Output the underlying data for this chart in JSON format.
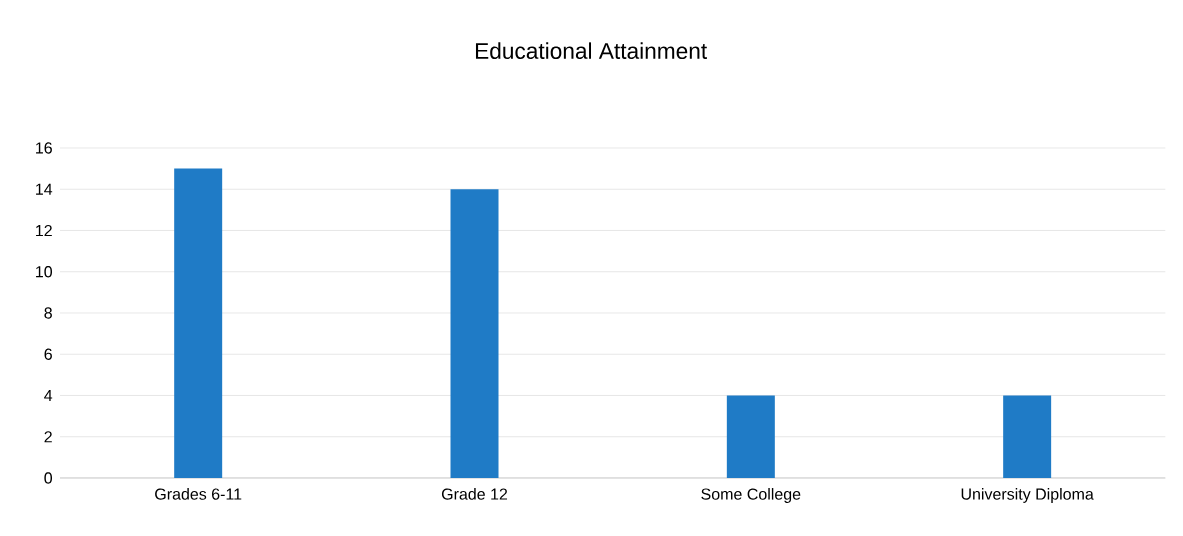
{
  "chart_data": {
    "type": "bar",
    "title": "Educational Attainment",
    "categories": [
      "Grades 6-11",
      "Grade 12",
      "Some College",
      "University Diploma"
    ],
    "values": [
      15,
      14,
      4,
      4
    ],
    "color": "#1f7bc6",
    "ylim": [
      0,
      16
    ],
    "yticks": [
      0,
      2,
      4,
      6,
      8,
      10,
      12,
      14,
      16
    ],
    "grid": "y"
  }
}
